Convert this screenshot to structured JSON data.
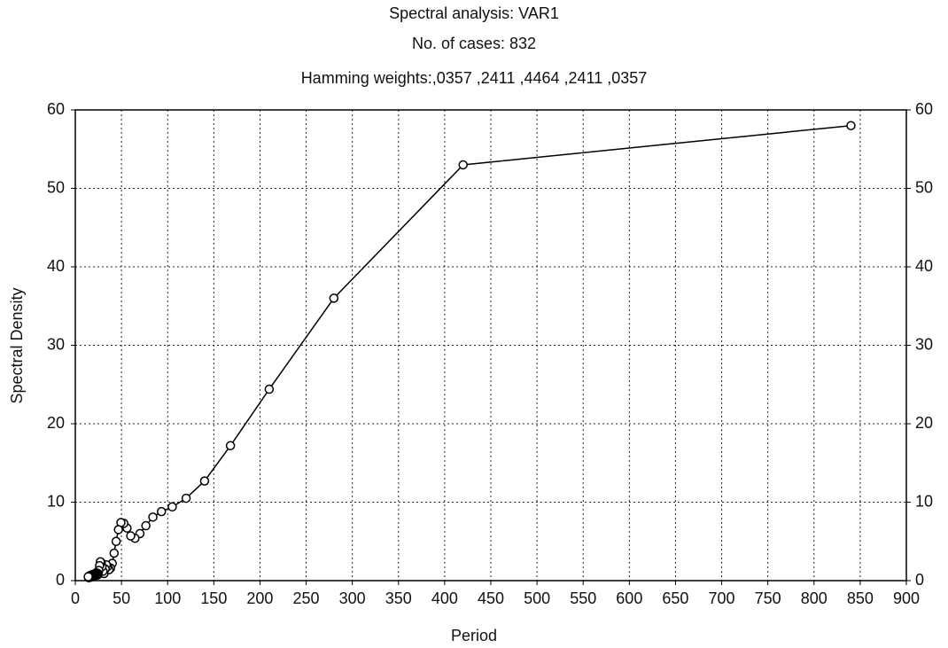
{
  "chart_data": {
    "type": "line",
    "title": "Spectral analysis: VAR1",
    "subtitle": "No. of cases: 832",
    "annotation": "Hamming weights:,0357 ,2411 ,4464 ,2411 ,0357",
    "x_label": "Period",
    "y_label": "Spectral Density",
    "x": [
      840,
      420,
      280,
      210,
      168,
      140,
      120,
      105,
      93.3,
      84,
      76.4,
      70,
      64.6,
      60,
      56,
      52.5,
      49.4,
      46.7,
      44.2,
      42,
      40,
      38.2,
      36.5,
      35,
      33.6,
      32.3,
      31.1,
      30,
      29,
      28,
      27.1,
      26.3,
      25.5,
      24.7,
      24,
      23.3,
      22.7,
      22.1,
      21.5,
      21,
      20.5,
      20,
      19.5,
      19.1,
      18.7,
      18.3,
      17.9,
      17.5,
      17.1,
      16.8,
      16.5,
      16.2,
      15.8,
      15.6,
      15.3,
      15,
      14.7,
      14.5,
      14.2,
      14
    ],
    "values": [
      58,
      53,
      36,
      24.4,
      17.2,
      12.7,
      10.5,
      9.4,
      8.8,
      8.1,
      7.0,
      6.0,
      5.4,
      5.7,
      6.7,
      7.3,
      7.4,
      6.5,
      5.0,
      3.5,
      2.2,
      1.6,
      1.4,
      1.8,
      2.0,
      1.5,
      0.9,
      1.2,
      1.8,
      2.3,
      2.4,
      1.9,
      1.3,
      0.9,
      0.7,
      0.8,
      1.0,
      0.9,
      0.8,
      0.7,
      0.6,
      0.6,
      0.7,
      0.8,
      0.7,
      0.6,
      0.5,
      0.5,
      0.6,
      0.7,
      0.6,
      0.5,
      0.5,
      0.4,
      0.5,
      0.6,
      0.5,
      0.4,
      0.4,
      0.5
    ],
    "color": "#000000",
    "xlim": [
      0,
      900
    ],
    "xticks": [
      0,
      50,
      100,
      150,
      200,
      250,
      300,
      350,
      400,
      450,
      500,
      550,
      600,
      650,
      700,
      750,
      800,
      850,
      900
    ],
    "ylim": [
      0,
      60
    ],
    "yticks": [
      0,
      10,
      20,
      30,
      40,
      50,
      60
    ],
    "y2lim": [
      0,
      60
    ],
    "y2ticks": [
      0,
      10,
      20,
      30,
      40,
      50,
      60
    ],
    "grid": true,
    "markers": true
  }
}
